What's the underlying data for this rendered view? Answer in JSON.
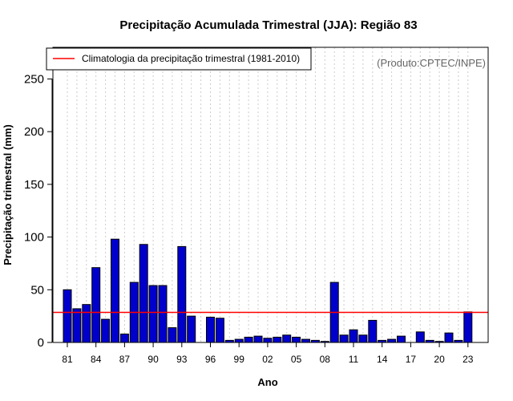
{
  "chart_data": {
    "type": "bar",
    "title": "Precipitação Acumulada Trimestral (JJA): Região 83",
    "xlabel": "Ano",
    "ylabel": "Precipitação trimestral (mm)",
    "credit": "(Produto:CPTEC/INPE)",
    "legend_label": "Climatologia da precipitação trimestral (1981-2010)",
    "legend_position": "top-left",
    "climatology": 28.5,
    "ylim": [
      0,
      280
    ],
    "yticks": [
      0,
      50,
      100,
      150,
      200,
      250
    ],
    "years": [
      1981,
      1982,
      1983,
      1984,
      1985,
      1986,
      1987,
      1988,
      1989,
      1990,
      1991,
      1992,
      1993,
      1994,
      1995,
      1996,
      1997,
      1998,
      1999,
      2000,
      2001,
      2002,
      2003,
      2004,
      2005,
      2006,
      2007,
      2008,
      2009,
      2010,
      2011,
      2012,
      2013,
      2014,
      2015,
      2016,
      2017,
      2018,
      2019,
      2020,
      2021,
      2022,
      2023
    ],
    "values": [
      50,
      32,
      36,
      71,
      22,
      98,
      8,
      57,
      93,
      54,
      54,
      14,
      91,
      25,
      0,
      24,
      23,
      2,
      3,
      5,
      6,
      4,
      5,
      7,
      5,
      3,
      2,
      1,
      57,
      7,
      12,
      7,
      21,
      2,
      3,
      6,
      0,
      10,
      2,
      1,
      9,
      2,
      29
    ],
    "xtick_labels": [
      "81",
      "84",
      "87",
      "90",
      "93",
      "96",
      "99",
      "02",
      "05",
      "08",
      "11",
      "14",
      "17",
      "20",
      "23"
    ],
    "xtick_years": [
      1981,
      1984,
      1987,
      1990,
      1993,
      1996,
      1999,
      2002,
      2005,
      2008,
      2011,
      2014,
      2017,
      2020,
      2023
    ],
    "colors": {
      "bar_fill": "#0000cd",
      "bar_stroke": "#000000",
      "climatology_line": "#ff0000",
      "grid": "#cccccc"
    },
    "grid": true
  }
}
